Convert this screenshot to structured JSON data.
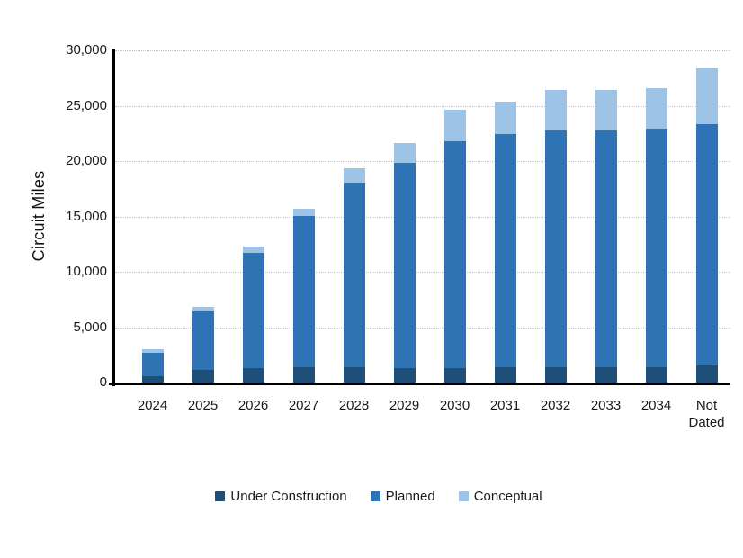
{
  "chart_data": {
    "type": "bar",
    "stacked": true,
    "title": "",
    "xlabel": "",
    "ylabel": "Circuit Miles",
    "ylim": [
      0,
      30000
    ],
    "ytick_step": 5000,
    "grid": "horizontal-dotted",
    "grid_color": "#c3c3c3",
    "axis_color": "#000000",
    "legend_position": "bottom",
    "categories": [
      "2024",
      "2025",
      "2026",
      "2027",
      "2028",
      "2029",
      "2030",
      "2031",
      "2032",
      "2033",
      "2034",
      "Not Dated"
    ],
    "series": [
      {
        "name": "Under Construction",
        "color": "#1f4e79",
        "values": [
          600,
          1100,
          1300,
          1400,
          1400,
          1300,
          1300,
          1350,
          1350,
          1350,
          1350,
          1550
        ]
      },
      {
        "name": "Planned",
        "color": "#2e74b5",
        "values": [
          2100,
          5350,
          10400,
          13650,
          16650,
          18550,
          20500,
          21100,
          21450,
          21450,
          21600,
          21800
        ]
      },
      {
        "name": "Conceptual",
        "color": "#9dc3e6",
        "values": [
          300,
          400,
          550,
          650,
          1300,
          1750,
          2800,
          2950,
          3650,
          3650,
          3650,
          5000
        ]
      }
    ],
    "totals": [
      3000,
      6850,
      12250,
      15700,
      19350,
      21600,
      24600,
      25400,
      26450,
      26450,
      26600,
      28350
    ]
  }
}
